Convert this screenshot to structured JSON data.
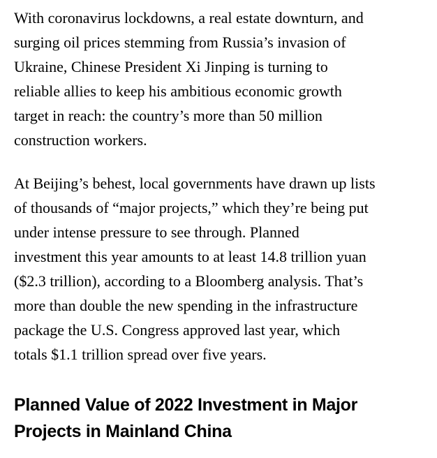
{
  "article": {
    "paragraphs": [
      {
        "lines": [
          "With coronavirus lockdowns, a real estate downturn, and",
          "surging oil prices stemming from Russia’s invasion of",
          "Ukraine, Chinese President Xi Jinping is turning to",
          "reliable allies to keep his ambitious economic growth",
          "target in reach: the country’s more than 50 million",
          "construction workers."
        ]
      },
      {
        "lines": [
          "At Beijing’s behest, local governments have drawn up lists",
          "of thousands of “major projects,” which they’re being put",
          "under intense pressure to see through. Planned",
          "investment this year amounts to at least 14.8 trillion yuan",
          "($2.3 trillion), according to a Bloomberg analysis. That’s",
          "more than double the new spending in the infrastructure",
          "package the U.S. Congress approved last year, which",
          "totals $1.1 trillion spread over five years."
        ]
      }
    ],
    "chart_heading": {
      "lines": [
        "Planned Value of 2022 Investment in Major",
        "Projects in Mainland China"
      ]
    }
  }
}
